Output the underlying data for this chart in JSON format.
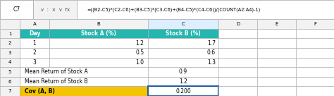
{
  "formula_bar_cell": "C7",
  "formula_bar_text": "=((B2-C5)*(C2-C6)+(B3-C5)*(C3-C6)+(B4-C5)*(C4-C6))/(COUNT(A2:A4)-1)",
  "col_letters": [
    "A",
    "B",
    "C",
    "D",
    "E",
    "F"
  ],
  "header_texts": [
    "Day",
    "Stock A (%)",
    "Stock B (%)"
  ],
  "data_rows": [
    [
      "1",
      "1.2",
      "1.7"
    ],
    [
      "2",
      "0.5",
      "0.6"
    ],
    [
      "3",
      "1.0",
      "1.3"
    ]
  ],
  "mean_rows": [
    [
      "Mean Return of Stock A",
      "0.9"
    ],
    [
      "Mean Return of Stock B",
      "1.2"
    ]
  ],
  "cov_label": "Cov (A, B)",
  "cov_value": "0.200",
  "header_bg": "#26B6B0",
  "header_fg": "#ffffff",
  "cov_bg": "#F5C400",
  "cov_fg": "#000000",
  "cell_bg": "#ffffff",
  "grid_color": "#aaaaaa",
  "rownum_bg": "#f2f2f2",
  "formula_bar_bg": "#ffffff",
  "formula_bar_gray": "#f2f2f2",
  "selected_border": "#2060A0",
  "col_highlight_bg": "#ddeeff",
  "figw": 4.74,
  "figh": 1.36,
  "dpi": 100
}
